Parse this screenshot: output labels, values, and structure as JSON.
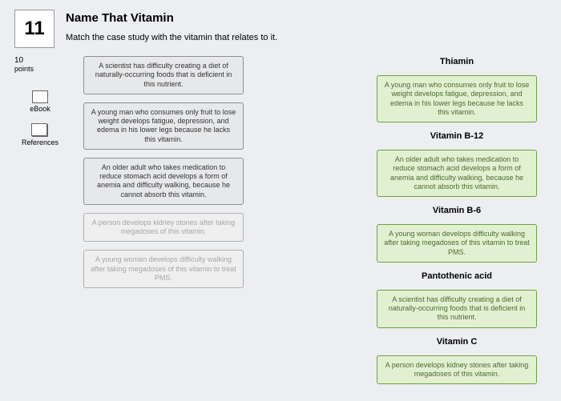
{
  "question_number": "11",
  "title": "Name That Vitamin",
  "instruction": "Match the case study with the vitamin that relates to it.",
  "points_value": "10",
  "points_label": "points",
  "sidebar": {
    "ebook_label": "eBook",
    "references_label": "References"
  },
  "colors": {
    "card_border_gray": "#8f8f8f",
    "card_bg_gray": "#e7e8ea",
    "card_border_green": "#6fa03c",
    "card_bg_green": "#e2f0d2",
    "card_text_green": "#4a6a2e",
    "card_border_faded": "#b0b0b0",
    "card_bg_faded": "#efefef",
    "card_text_faded": "#a6a6a6"
  },
  "left_cards": [
    {
      "text": "A scientist has difficulty creating a diet of naturally-occurring foods that is deficient in this nutrient.",
      "style": "gray"
    },
    {
      "text": "A young man who consumes only fruit to lose weight develops fatigue, depression, and edema in his lower legs because he lacks this vitamin.",
      "style": "gray"
    },
    {
      "text": "An older adult who takes medication to reduce stomach acid develops a form of anemia and difficulty walking, because he cannot absorb this vitamin.",
      "style": "gray"
    },
    {
      "text": "A person develops kidney stones after taking megadoses of this vitamin.",
      "style": "faded"
    },
    {
      "text": "A young woman develops difficulty walking after taking megadoses of this vitamin to treat PMS.",
      "style": "faded"
    }
  ],
  "right_items": [
    {
      "type": "label",
      "text": "Thiamin"
    },
    {
      "type": "card",
      "text": "A young man who consumes only fruit to lose weight develops fatigue, depression, and edema in his lower legs because he lacks this vitamin.",
      "style": "green"
    },
    {
      "type": "label",
      "text": "Vitamin B-12"
    },
    {
      "type": "card",
      "text": "An older adult who takes medication to reduce stomach acid develops a form of anemia and difficulty walking, because he cannot absorb this vitamin.",
      "style": "green"
    },
    {
      "type": "label",
      "text": "Vitamin B-6"
    },
    {
      "type": "card",
      "text": "A young woman develops difficulty walking after taking megadoses of this vitamin to treat PMS.",
      "style": "green"
    },
    {
      "type": "label",
      "text": "Pantothenic acid"
    },
    {
      "type": "card",
      "text": "A scientist has difficulty creating a diet of naturally-occurring foods that is deficient in this nutrient.",
      "style": "green"
    },
    {
      "type": "label",
      "text": "Vitamin C"
    },
    {
      "type": "card",
      "text": "A person develops kidney stones after taking megadoses of this vitamin.",
      "style": "green"
    }
  ]
}
